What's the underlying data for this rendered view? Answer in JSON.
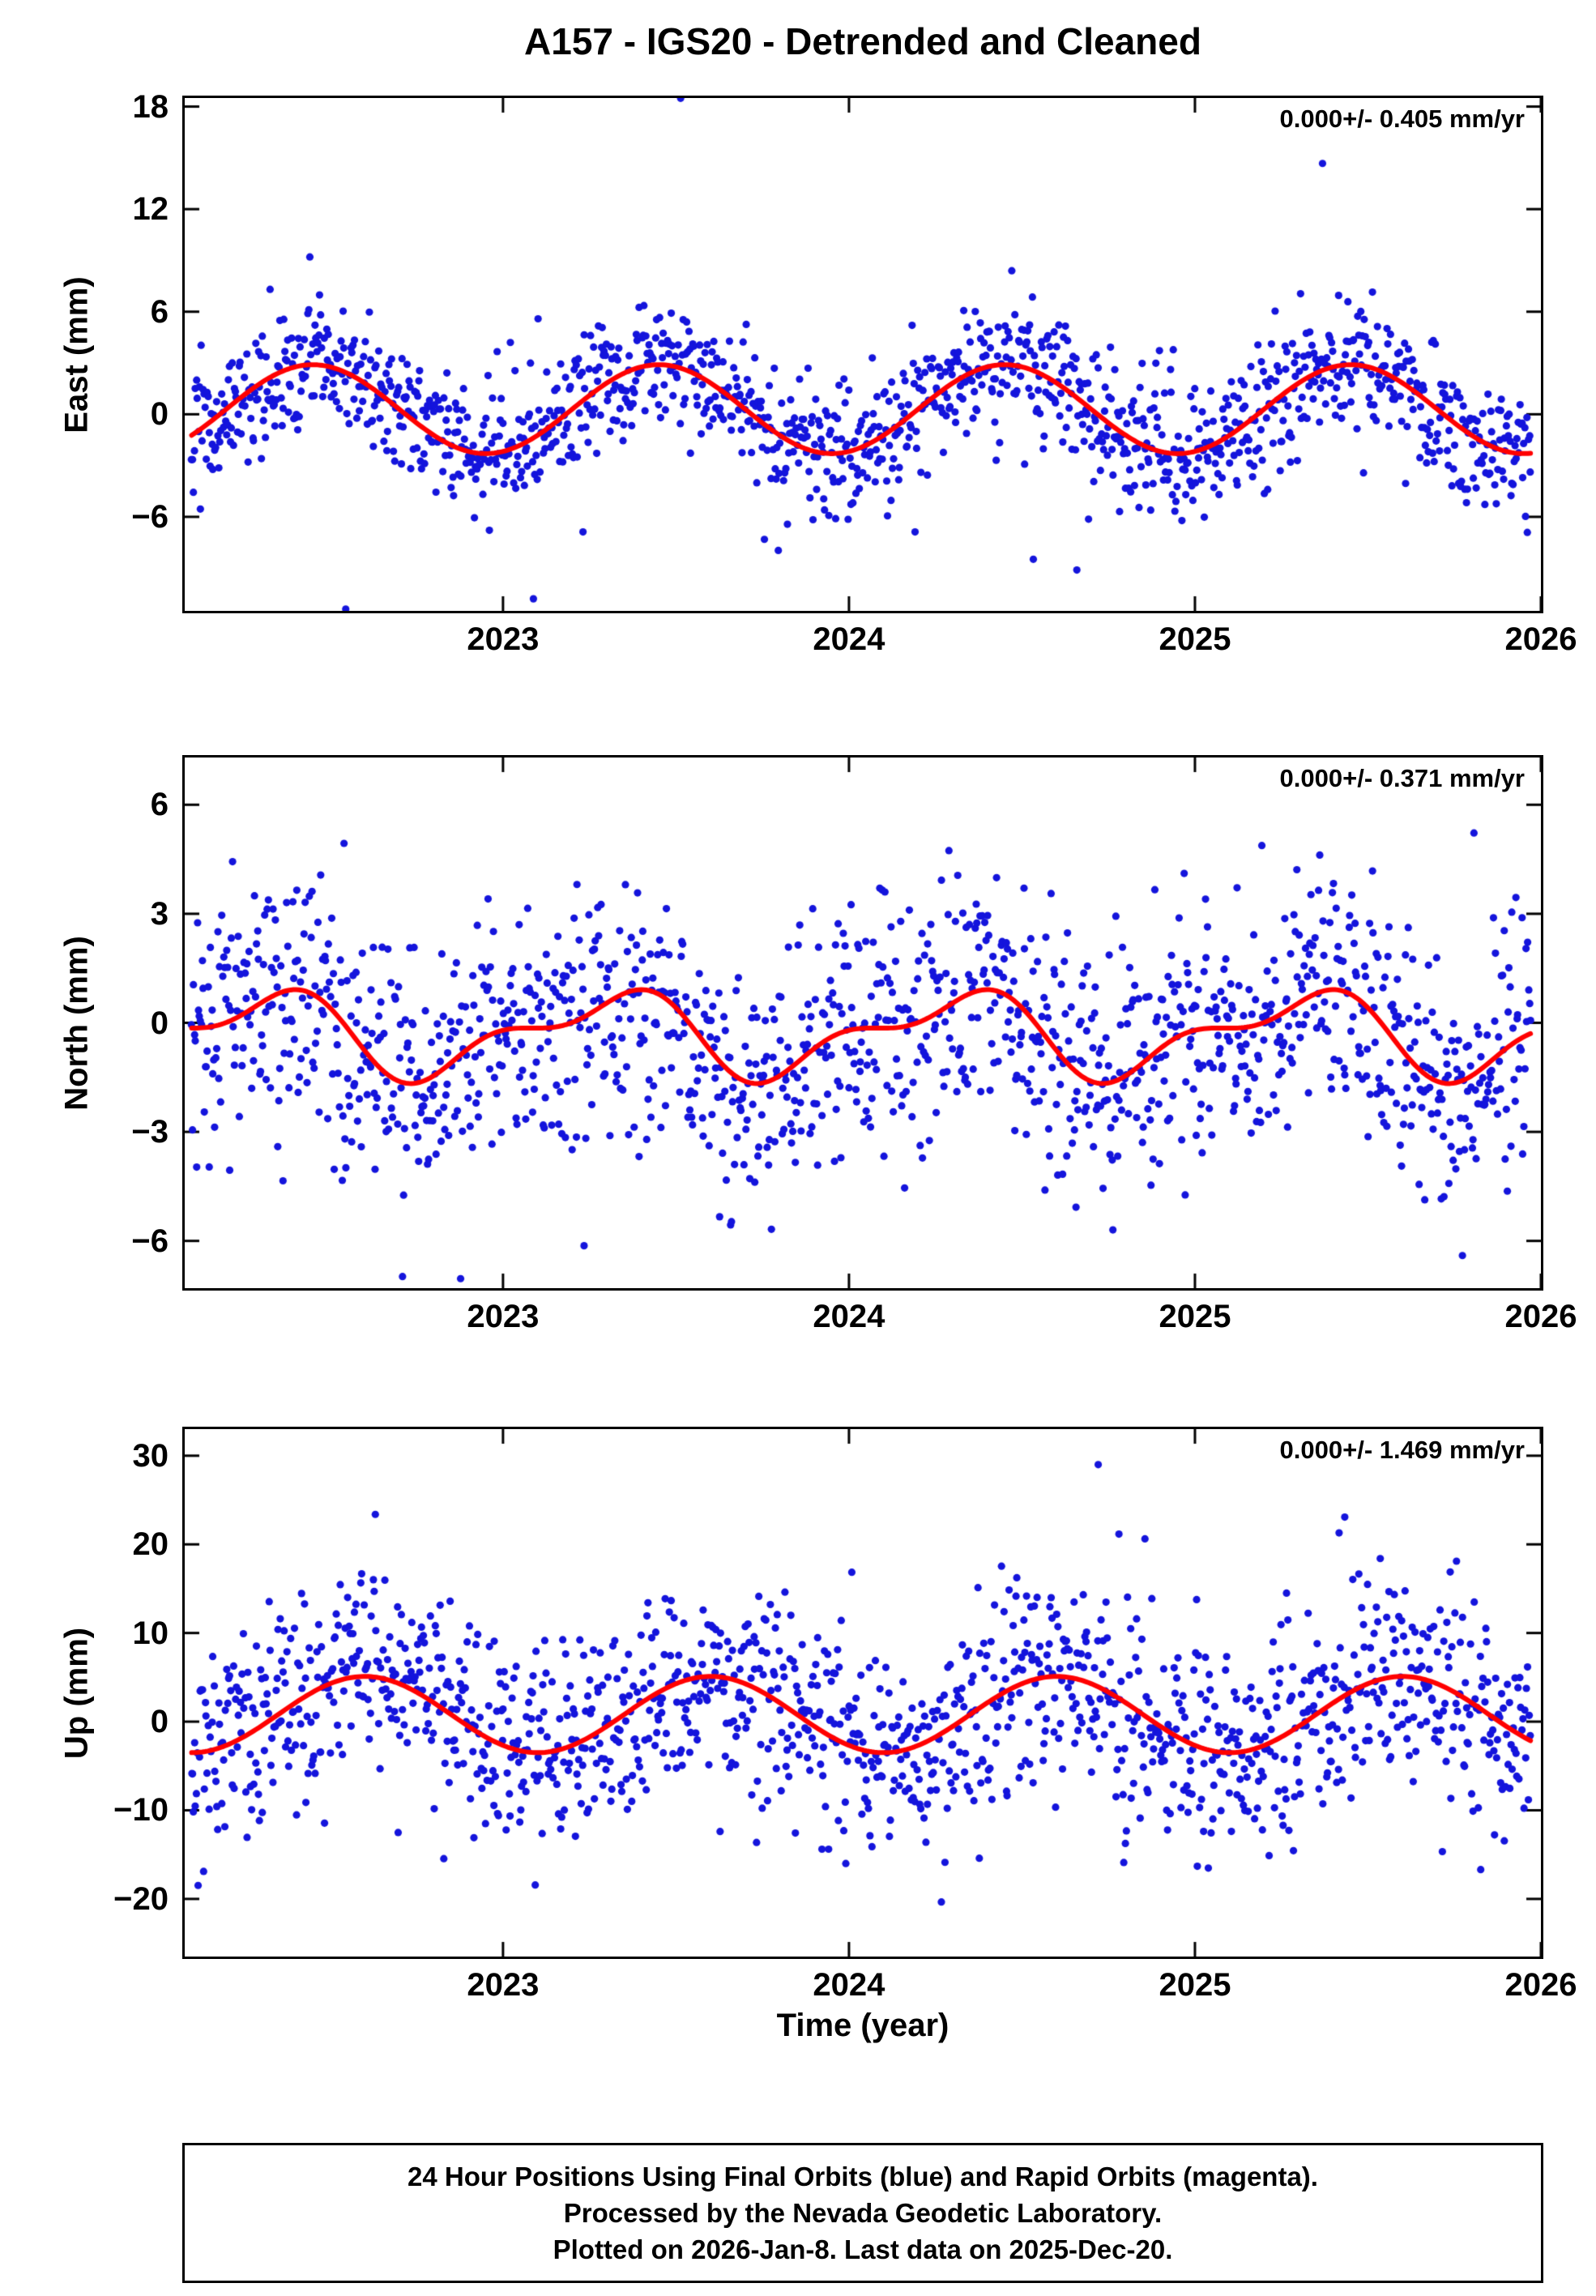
{
  "title": "A157 - IGS20 - Detrended and Cleaned",
  "xlabel": "Time (year)",
  "caption": {
    "lines": [
      "24 Hour Positions Using Final Orbits (blue) and Rapid Orbits (magenta).",
      "Processed by the Nevada Geodetic Laboratory.",
      "Plotted on 2026-Jan-8. Last data on 2025-Dec-20."
    ]
  },
  "chart_data": {
    "type": "scatter",
    "title": "A157 - IGS20 - Detrended and Cleaned",
    "xlabel": "Time (year)",
    "x_axis": {
      "lim": [
        2022.08,
        2026.0
      ],
      "ticks": [
        2023,
        2024,
        2025,
        2026
      ],
      "data_start": 2022.1,
      "data_end": 2025.97,
      "n_points": 1380
    },
    "colors": {
      "point": "#1414dc",
      "curve": "#ff0000",
      "frame": "#000000",
      "rapid_orbit_note": "#ff00ff"
    },
    "panels": [
      {
        "ylabel": "East (mm)",
        "annotation": "0.000+/- 0.405 mm/yr",
        "rate_mm_yr": 0.0,
        "rate_sigma_mm_yr": 0.405,
        "ylim": [
          -11.5,
          18.5
        ],
        "yticks": [
          18,
          12,
          6,
          0,
          -6
        ],
        "seasonal_model": {
          "mean": 0.3,
          "annual_amp": 2.6,
          "annual_phase": 0.2,
          "semi_amp": 0.0,
          "semi_phase": 0.0
        },
        "noise_sigma": 2.0,
        "outlier_rate": 0.015,
        "outlier_scale": 4.0,
        "seed": 101
      },
      {
        "ylabel": "North (mm)",
        "annotation": "0.000+/- 0.371 mm/yr",
        "rate_mm_yr": 0.0,
        "rate_sigma_mm_yr": 0.371,
        "ylim": [
          -7.3,
          7.3
        ],
        "yticks": [
          6,
          3,
          0,
          -3,
          -6
        ],
        "seasonal_model": {
          "mean": -0.3,
          "annual_amp": 1.0,
          "annual_phase": 0.05,
          "semi_amp": 0.5,
          "semi_phase": 0.325
        },
        "noise_sigma": 1.8,
        "outlier_rate": 0.012,
        "outlier_scale": 3.0,
        "seed": 202
      },
      {
        "ylabel": "Up (mm)",
        "annotation": "0.000+/- 1.469 mm/yr",
        "rate_mm_yr": 0.0,
        "rate_sigma_mm_yr": 1.469,
        "ylim": [
          -26.5,
          33.0
        ],
        "yticks": [
          30,
          20,
          10,
          0,
          -10,
          -20
        ],
        "seasonal_model": {
          "mean": 0.8,
          "annual_amp": 4.3,
          "annual_phase": 0.35,
          "semi_amp": 0.0,
          "semi_phase": 0.0
        },
        "noise_sigma": 6.2,
        "outlier_rate": 0.012,
        "outlier_scale": 4.0,
        "seed": 303
      }
    ]
  }
}
